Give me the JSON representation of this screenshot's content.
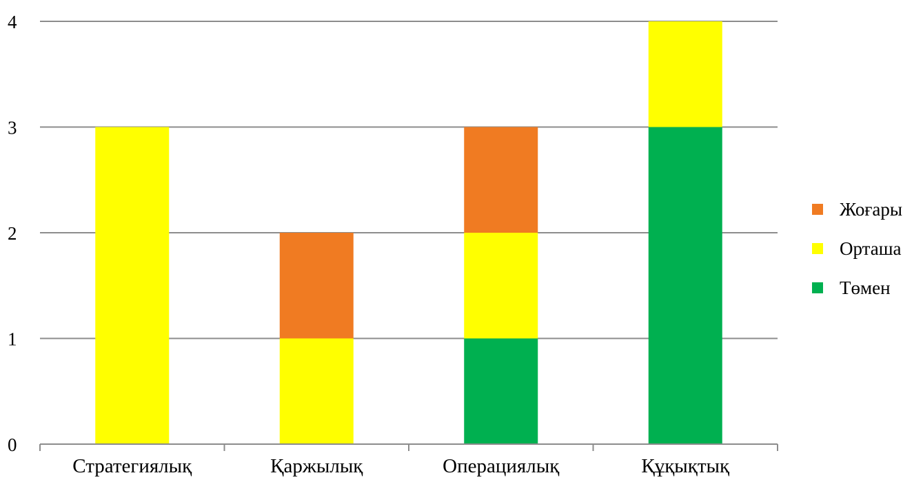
{
  "chart_data": {
    "type": "bar",
    "stacked": true,
    "categories": [
      "Стратегиялық",
      "Қаржылық",
      "Операциялық",
      "Құқықтық"
    ],
    "series": [
      {
        "name": "Төмен",
        "color": "#00B050",
        "values": [
          0,
          0,
          1,
          3
        ]
      },
      {
        "name": "Орташа",
        "color": "#FFFF00",
        "values": [
          3,
          1,
          1,
          1
        ]
      },
      {
        "name": "Жоғары",
        "color": "#F07B22",
        "values": [
          0,
          1,
          1,
          0
        ]
      }
    ],
    "legend_order": [
      "Жоғары",
      "Орташа",
      "Төмен"
    ],
    "legend_position": "right",
    "ylim": [
      0,
      4
    ],
    "yticks": [
      "0",
      "1",
      "2",
      "3",
      "4"
    ],
    "grid": true,
    "title": "",
    "xlabel": "",
    "ylabel": ""
  }
}
